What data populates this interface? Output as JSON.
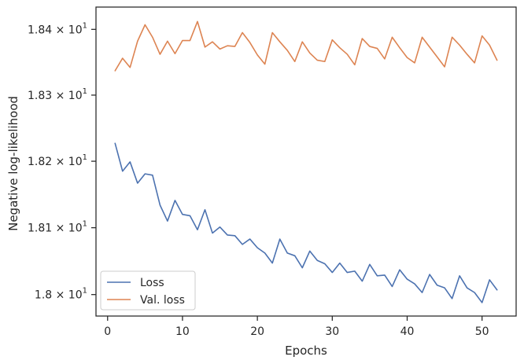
{
  "chart_data": {
    "type": "line",
    "title": "",
    "xlabel": "Epochs",
    "ylabel": "Negative log-likelihood",
    "y_scale": "log",
    "xlim": [
      -1.55,
      54.55
    ],
    "ylim": [
      17.968,
      18.434
    ],
    "x_ticks": [
      0,
      10,
      20,
      30,
      40,
      50
    ],
    "y_ticks": [
      {
        "value": 18.0,
        "mantissa": "1.8",
        "base": "10",
        "exponent": "1"
      },
      {
        "value": 18.1,
        "mantissa": "1.81",
        "base": "10",
        "exponent": "1"
      },
      {
        "value": 18.2,
        "mantissa": "1.82",
        "base": "10",
        "exponent": "1"
      },
      {
        "value": 18.3,
        "mantissa": "1.83",
        "base": "10",
        "exponent": "1"
      },
      {
        "value": 18.4,
        "mantissa": "1.84",
        "base": "10",
        "exponent": "1"
      }
    ],
    "grid": false,
    "legend_position": "lower-left",
    "x": [
      1,
      2,
      3,
      4,
      5,
      6,
      7,
      8,
      9,
      10,
      11,
      12,
      13,
      14,
      15,
      16,
      17,
      18,
      19,
      20,
      21,
      22,
      23,
      24,
      25,
      26,
      27,
      28,
      29,
      30,
      31,
      32,
      33,
      34,
      35,
      36,
      37,
      38,
      39,
      40,
      41,
      42,
      43,
      44,
      45,
      46,
      47,
      48,
      49,
      50,
      51,
      52
    ],
    "series": [
      {
        "name": "Loss",
        "color": "#4c72b0",
        "values": [
          18.227,
          18.185,
          18.199,
          18.167,
          18.181,
          18.179,
          18.134,
          18.11,
          18.141,
          18.12,
          18.118,
          18.097,
          18.127,
          18.092,
          18.101,
          18.089,
          18.088,
          18.075,
          18.083,
          18.07,
          18.062,
          18.047,
          18.083,
          18.062,
          18.058,
          18.04,
          18.065,
          18.051,
          18.046,
          18.033,
          18.047,
          18.033,
          18.035,
          18.02,
          18.045,
          18.028,
          18.029,
          18.012,
          18.037,
          18.023,
          18.016,
          18.003,
          18.03,
          18.014,
          18.01,
          17.994,
          18.028,
          18.01,
          18.003,
          17.988,
          18.022,
          18.007
        ]
      },
      {
        "name": "Val. loss",
        "color": "#dd8452",
        "values": [
          18.337,
          18.356,
          18.342,
          18.382,
          18.407,
          18.388,
          18.362,
          18.382,
          18.363,
          18.383,
          18.383,
          18.412,
          18.373,
          18.381,
          18.37,
          18.375,
          18.374,
          18.395,
          18.38,
          18.361,
          18.347,
          18.395,
          18.381,
          18.368,
          18.351,
          18.381,
          18.364,
          18.353,
          18.351,
          18.384,
          18.372,
          18.362,
          18.346,
          18.386,
          18.374,
          18.371,
          18.355,
          18.388,
          18.372,
          18.357,
          18.349,
          18.388,
          18.373,
          18.358,
          18.343,
          18.388,
          18.376,
          18.362,
          18.349,
          18.39,
          18.376,
          18.353
        ]
      }
    ]
  },
  "colors": {
    "axes_edge": "#262626",
    "text": "#262626",
    "legend_edge": "#cccccc"
  }
}
